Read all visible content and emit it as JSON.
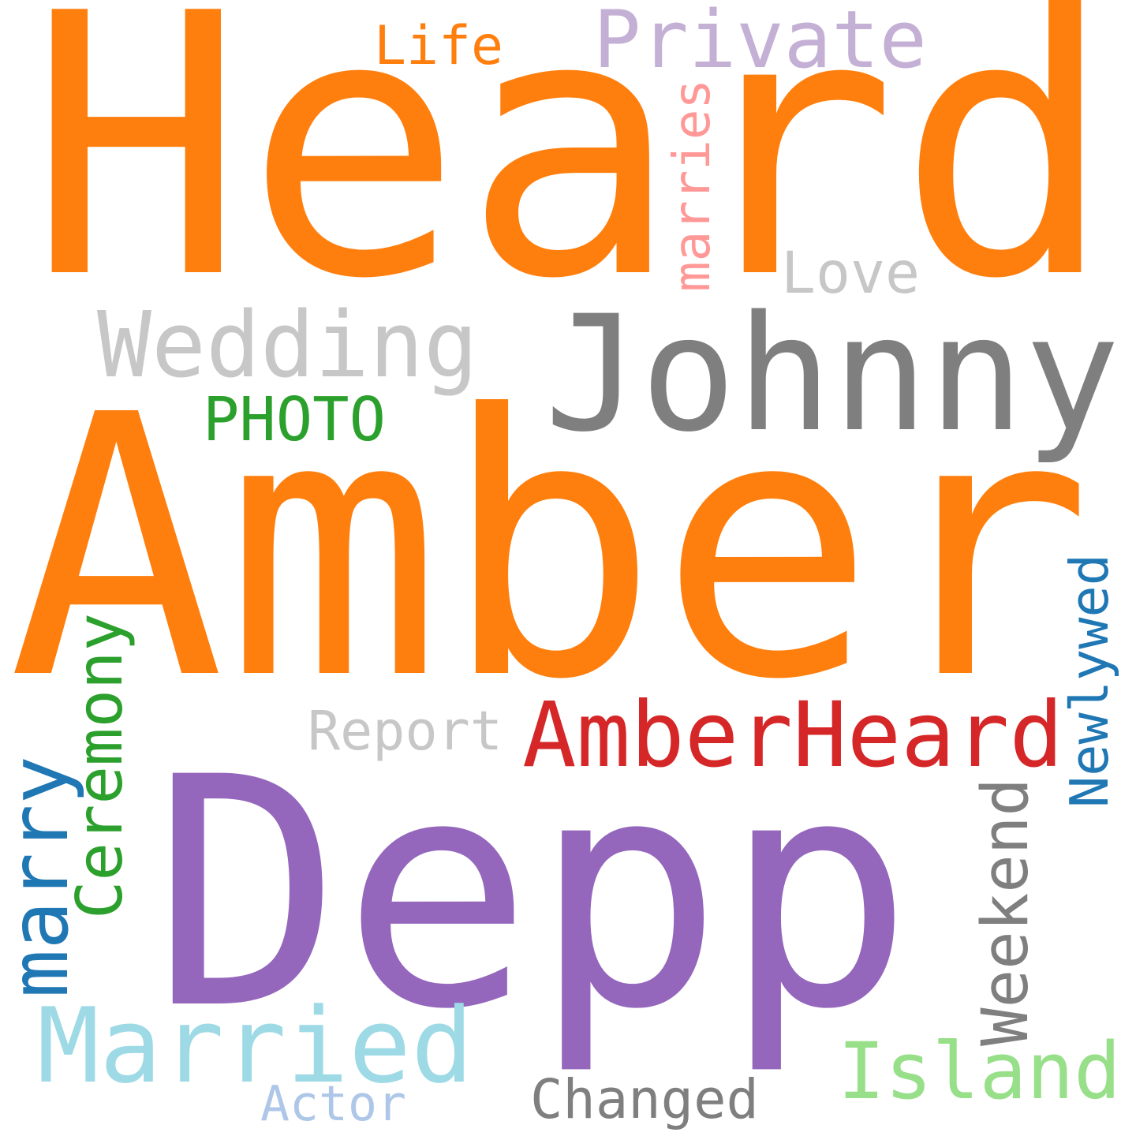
{
  "words": [
    {
      "key": "heard",
      "text": "Heard",
      "color": "#ff7f0e",
      "vertical": false
    },
    {
      "key": "amber",
      "text": "Amber",
      "color": "#ff7f0e",
      "vertical": false
    },
    {
      "key": "depp",
      "text": "Depp",
      "color": "#9467bd",
      "vertical": false
    },
    {
      "key": "johnny",
      "text": "Johnny",
      "color": "#7f7f7f",
      "vertical": false
    },
    {
      "key": "wedding",
      "text": "Wedding",
      "color": "#c7c7c7",
      "vertical": false
    },
    {
      "key": "amberheard",
      "text": "AmberHeard",
      "color": "#d62728",
      "vertical": false
    },
    {
      "key": "married",
      "text": "Married",
      "color": "#9edae5",
      "vertical": false
    },
    {
      "key": "island",
      "text": "Island",
      "color": "#98df8a",
      "vertical": false
    },
    {
      "key": "private",
      "text": "Private",
      "color": "#c5b0d5",
      "vertical": false
    },
    {
      "key": "life",
      "text": "Life",
      "color": "#ff7f0e",
      "vertical": false
    },
    {
      "key": "love",
      "text": "Love",
      "color": "#c7c7c7",
      "vertical": false
    },
    {
      "key": "photo",
      "text": "PHOTO",
      "color": "#2ca02c",
      "vertical": false
    },
    {
      "key": "report",
      "text": "Report",
      "color": "#c7c7c7",
      "vertical": false
    },
    {
      "key": "changed",
      "text": "Changed",
      "color": "#7f7f7f",
      "vertical": false
    },
    {
      "key": "actor",
      "text": "Actor",
      "color": "#aec7e8",
      "vertical": false
    },
    {
      "key": "marries",
      "text": "marries",
      "color": "#ff9896",
      "vertical": true
    },
    {
      "key": "ceremony",
      "text": "Ceremony",
      "color": "#2ca02c",
      "vertical": true
    },
    {
      "key": "marry",
      "text": "marry",
      "color": "#1f77b4",
      "vertical": true
    },
    {
      "key": "weekend",
      "text": "Weekend",
      "color": "#7f7f7f",
      "vertical": true
    },
    {
      "key": "newlywed",
      "text": "Newlywed",
      "color": "#1f77b4",
      "vertical": true
    }
  ]
}
